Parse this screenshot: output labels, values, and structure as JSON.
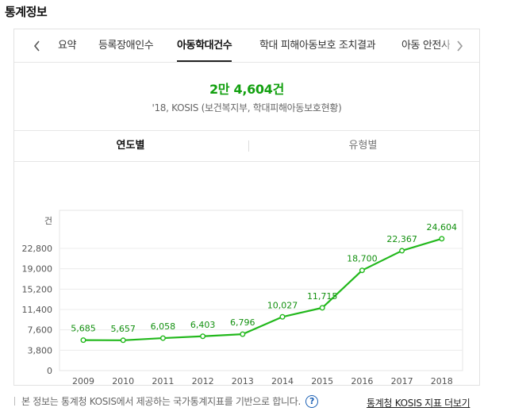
{
  "section": {
    "title": "통계정보"
  },
  "tabs": [
    {
      "label": "요약"
    },
    {
      "label": "등록장애인수"
    },
    {
      "label": "아동학대건수"
    },
    {
      "label": "학대 피해아동보호 조치결과"
    },
    {
      "label": "아동 안전사고"
    }
  ],
  "summary": {
    "value": "2만 4,604건",
    "source": "'18, KOSIS (보건복지부, 학대피해아동보호현황)"
  },
  "view_tabs": [
    {
      "label": "연도별"
    },
    {
      "label": "유형별"
    }
  ],
  "colors": {
    "accent": "#12a00f",
    "line": "#22b81c"
  },
  "chart_data": {
    "type": "line",
    "categories": [
      "2009",
      "2010",
      "2011",
      "2012",
      "2013",
      "2014",
      "2015",
      "2016",
      "2017",
      "2018"
    ],
    "series": [
      {
        "values": [
          5685,
          5657,
          6058,
          6403,
          6796,
          10027,
          11715,
          18700,
          22367,
          24604
        ]
      }
    ],
    "value_labels": [
      "5,685",
      "5,657",
      "6,058",
      "6,403",
      "6,796",
      "10,027",
      "11,715",
      "18,700",
      "22,367",
      "24,604"
    ],
    "y_unit": "건",
    "y_ticks": [
      0,
      3800,
      7600,
      11400,
      15200,
      19000,
      22800
    ],
    "y_tick_labels": [
      "0",
      "3,800",
      "7,600",
      "11,400",
      "15,200",
      "19,000",
      "22,800"
    ],
    "ylim": [
      0,
      26600
    ],
    "grid": true
  },
  "footer": {
    "note": "본 정보는 통계청 KOSIS에서 제공하는 국가통계지표를 기반으로 합니다.",
    "help_icon": "?",
    "link": "통계청 KOSIS 지표 더보기"
  }
}
